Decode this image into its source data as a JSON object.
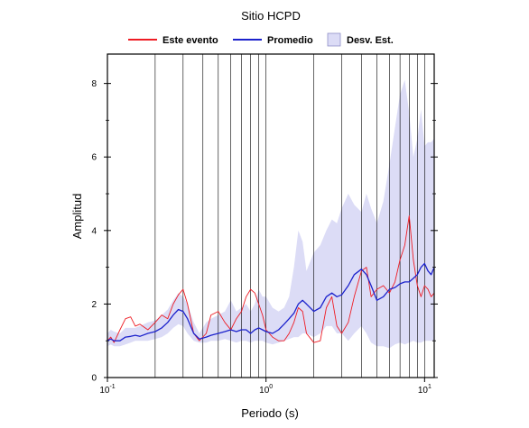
{
  "chart_data": {
    "type": "line",
    "title": "Sitio HCPD",
    "xlabel": "Periodo (s)",
    "ylabel": "Amplitud",
    "x_scale": "log",
    "xlim": [
      0.1,
      11.5
    ],
    "ylim": [
      0,
      8.8
    ],
    "grid": true,
    "legend_position": "top",
    "x_ticks": [
      {
        "value": 0.1,
        "base": "10",
        "exp": "-1"
      },
      {
        "value": 1,
        "base": "10",
        "exp": "0"
      },
      {
        "value": 10,
        "base": "10",
        "exp": "1"
      }
    ],
    "y_ticks": [
      0,
      2,
      4,
      6,
      8
    ],
    "legend": [
      {
        "label": "Este evento",
        "kind": "line",
        "color": "#ee1c24"
      },
      {
        "label": "Promedio",
        "kind": "line",
        "color": "#1c22cc"
      },
      {
        "label": "Desv. Est.",
        "kind": "band",
        "color": "#dcdcf6"
      }
    ],
    "x": [
      0.1,
      0.105,
      0.11,
      0.12,
      0.13,
      0.14,
      0.15,
      0.16,
      0.18,
      0.2,
      0.22,
      0.24,
      0.26,
      0.28,
      0.3,
      0.32,
      0.35,
      0.38,
      0.42,
      0.45,
      0.5,
      0.55,
      0.6,
      0.65,
      0.7,
      0.75,
      0.8,
      0.85,
      0.9,
      0.95,
      1.0,
      1.1,
      1.2,
      1.3,
      1.4,
      1.5,
      1.6,
      1.7,
      1.8,
      2.0,
      2.2,
      2.4,
      2.6,
      2.8,
      3.0,
      3.3,
      3.6,
      4.0,
      4.3,
      4.6,
      5.0,
      5.5,
      6.0,
      6.5,
      7.0,
      7.5,
      8.0,
      8.5,
      9.0,
      9.5,
      10.0,
      10.5,
      11.0,
      11.5
    ],
    "series": [
      {
        "name": "Este evento",
        "color": "#ee1c24",
        "values": [
          1.0,
          1.1,
          0.95,
          1.3,
          1.6,
          1.65,
          1.4,
          1.45,
          1.3,
          1.5,
          1.7,
          1.6,
          2.0,
          2.25,
          2.4,
          2.0,
          1.2,
          1.0,
          1.2,
          1.7,
          1.8,
          1.5,
          1.3,
          1.6,
          1.8,
          2.2,
          2.4,
          2.3,
          2.0,
          1.7,
          1.3,
          1.1,
          1.0,
          1.0,
          1.2,
          1.5,
          1.9,
          1.8,
          1.2,
          0.95,
          1.0,
          1.9,
          2.2,
          1.4,
          1.2,
          1.5,
          2.2,
          2.9,
          3.0,
          2.2,
          2.4,
          2.5,
          2.3,
          2.6,
          3.2,
          3.6,
          4.4,
          3.2,
          2.5,
          2.2,
          2.5,
          2.4,
          2.2,
          2.3
        ]
      },
      {
        "name": "Promedio",
        "color": "#1c22cc",
        "values": [
          1.0,
          1.05,
          1.0,
          1.0,
          1.1,
          1.12,
          1.15,
          1.12,
          1.2,
          1.25,
          1.35,
          1.5,
          1.7,
          1.85,
          1.8,
          1.6,
          1.2,
          1.05,
          1.1,
          1.15,
          1.2,
          1.25,
          1.3,
          1.25,
          1.3,
          1.3,
          1.2,
          1.3,
          1.35,
          1.3,
          1.25,
          1.2,
          1.3,
          1.45,
          1.6,
          1.75,
          2.0,
          2.1,
          2.0,
          1.8,
          1.9,
          2.2,
          2.3,
          2.2,
          2.25,
          2.5,
          2.8,
          2.95,
          2.8,
          2.5,
          2.1,
          2.2,
          2.4,
          2.45,
          2.55,
          2.6,
          2.6,
          2.7,
          2.8,
          3.0,
          3.1,
          2.9,
          2.8,
          3.0
        ]
      }
    ],
    "band": {
      "name": "Desv. Est.",
      "color": "#dcdcf6",
      "lower": [
        0.85,
        0.9,
        0.85,
        0.85,
        0.9,
        0.95,
        1.0,
        1.0,
        1.0,
        1.05,
        1.1,
        1.2,
        1.35,
        1.45,
        1.4,
        1.2,
        1.0,
        0.95,
        0.95,
        1.0,
        1.0,
        1.05,
        1.0,
        0.95,
        1.0,
        1.0,
        0.95,
        1.0,
        1.0,
        1.0,
        0.95,
        0.9,
        0.95,
        1.0,
        1.05,
        1.1,
        1.1,
        1.2,
        1.2,
        1.1,
        1.2,
        1.4,
        1.4,
        1.2,
        1.2,
        1.0,
        1.2,
        1.4,
        1.2,
        0.95,
        0.85,
        0.85,
        0.8,
        0.9,
        0.95,
        0.9,
        0.95,
        1.0,
        0.95,
        0.95,
        1.0,
        1.0,
        1.0,
        1.0
      ],
      "upper": [
        1.2,
        1.3,
        1.25,
        1.2,
        1.35,
        1.35,
        1.35,
        1.4,
        1.5,
        1.55,
        1.7,
        1.85,
        2.1,
        2.3,
        2.2,
        2.0,
        1.5,
        1.2,
        1.5,
        1.6,
        1.7,
        1.8,
        2.1,
        1.8,
        1.9,
        2.0,
        1.8,
        2.0,
        2.4,
        2.2,
        2.2,
        1.9,
        1.8,
        1.9,
        2.2,
        3.0,
        4.0,
        3.7,
        2.9,
        3.4,
        3.6,
        4.0,
        4.3,
        4.2,
        4.6,
        5.0,
        4.7,
        4.5,
        5.0,
        4.6,
        4.2,
        4.8,
        5.8,
        6.8,
        7.7,
        8.1,
        7.2,
        6.0,
        6.5,
        7.3,
        6.3,
        6.4,
        6.4,
        6.5
      ]
    }
  }
}
